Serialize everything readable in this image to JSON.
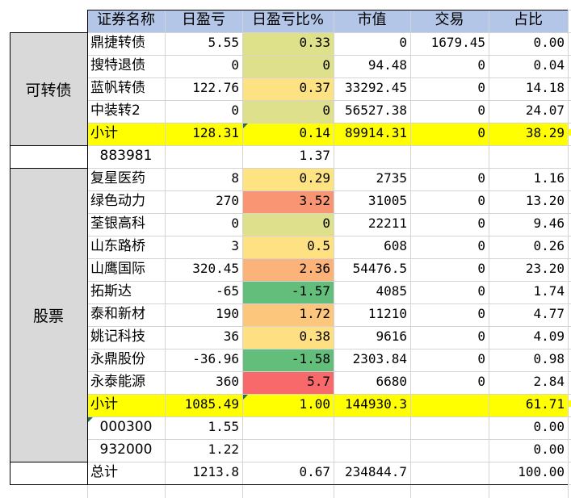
{
  "colors": {
    "header_bg": "#b4c6e7",
    "group_bg": "#d9d9d9",
    "subtotal_bg": "#ffff00",
    "grid": "#d4d4d4",
    "comment_marker": "#217346"
  },
  "headers": [
    "证券名称",
    "日盈亏",
    "日盈亏比%",
    "市值",
    "交易",
    "占比"
  ],
  "groups": {
    "convertible": "可转债",
    "stocks": "股票"
  },
  "rows": [
    {
      "name": "鼎捷转债",
      "pnl": "5.55",
      "pct": "0.33",
      "mv": "0",
      "trade": "1679.45",
      "share": "0.00",
      "pct_bg": "#dfe08a"
    },
    {
      "name": "搜特退债",
      "pnl": "0",
      "pct": "0",
      "mv": "94.48",
      "trade": "0",
      "share": "0.04",
      "pct_bg": "#dee08b"
    },
    {
      "name": "蓝帆转债",
      "pnl": "122.76",
      "pct": "0.37",
      "mv": "33292.45",
      "trade": "0",
      "share": "14.18",
      "pct_bg": "#fde283"
    },
    {
      "name": "中装转2",
      "pnl": "0",
      "pct": "0",
      "mv": "56527.38",
      "trade": "0",
      "share": "24.07",
      "pct_bg": "#dee08b"
    },
    {
      "name": "小计",
      "pnl": "128.31",
      "pct": "0.14",
      "mv": "89914.31",
      "trade": "0",
      "share": "38.29",
      "subtotal": true
    },
    {
      "name": "883981",
      "pnl": "",
      "pct": "1.37",
      "mv": "",
      "trade": "",
      "share": "",
      "index": true
    },
    {
      "name": "复星医药",
      "pnl": "8",
      "pct": "0.29",
      "mv": "2735",
      "trade": "0",
      "share": "1.16",
      "pct_bg": "#fee382"
    },
    {
      "name": "绿色动力",
      "pnl": "270",
      "pct": "3.52",
      "mv": "31005",
      "trade": "0",
      "share": "13.20",
      "pct_bg": "#f99573"
    },
    {
      "name": "荃银高科",
      "pnl": "0",
      "pct": "0",
      "mv": "22211",
      "trade": "0",
      "share": "9.46",
      "pct_bg": "#dee08b"
    },
    {
      "name": "山东路桥",
      "pnl": "3",
      "pct": "0.5",
      "mv": "608",
      "trade": "0",
      "share": "0.26",
      "pct_bg": "#fee182"
    },
    {
      "name": "山鹰国际",
      "pnl": "320.45",
      "pct": "2.36",
      "mv": "54476.5",
      "trade": "0",
      "share": "23.20",
      "pct_bg": "#fbb37a"
    },
    {
      "name": "拓斯达",
      "pnl": "-65",
      "pct": "-1.57",
      "mv": "4085",
      "trade": "0",
      "share": "1.74",
      "pct_bg": "#63be7b"
    },
    {
      "name": "泰和新材",
      "pnl": "190",
      "pct": "1.72",
      "mv": "11210",
      "trade": "0",
      "share": "4.77",
      "pct_bg": "#fcc67d"
    },
    {
      "name": "姚记科技",
      "pnl": "36",
      "pct": "0.38",
      "mv": "9616",
      "trade": "0",
      "share": "4.09",
      "pct_bg": "#fee082"
    },
    {
      "name": "永鼎股份",
      "pnl": "-36.96",
      "pct": "-1.58",
      "mv": "2303.84",
      "trade": "0",
      "share": "0.98",
      "pct_bg": "#63be7b"
    },
    {
      "name": "永泰能源",
      "pnl": "360",
      "pct": "5.7",
      "mv": "6680",
      "trade": "0",
      "share": "2.84",
      "pct_bg": "#f8696b"
    },
    {
      "name": "小计",
      "pnl": "1085.49",
      "pct": "1.00",
      "mv": "144930.3",
      "trade": "",
      "share": "61.71",
      "subtotal": true
    },
    {
      "name": "000300",
      "pnl": "1.55",
      "pct": "",
      "mv": "",
      "trade": "",
      "share": "0.00",
      "index": true
    },
    {
      "name": "932000",
      "pnl": "1.22",
      "pct": "",
      "mv": "",
      "trade": "",
      "share": "0.00",
      "index": true
    },
    {
      "name": "总计",
      "pnl": "1213.8",
      "pct": "0.67",
      "mv": "234844.7",
      "trade": "",
      "share": "100.00",
      "total": true
    }
  ]
}
